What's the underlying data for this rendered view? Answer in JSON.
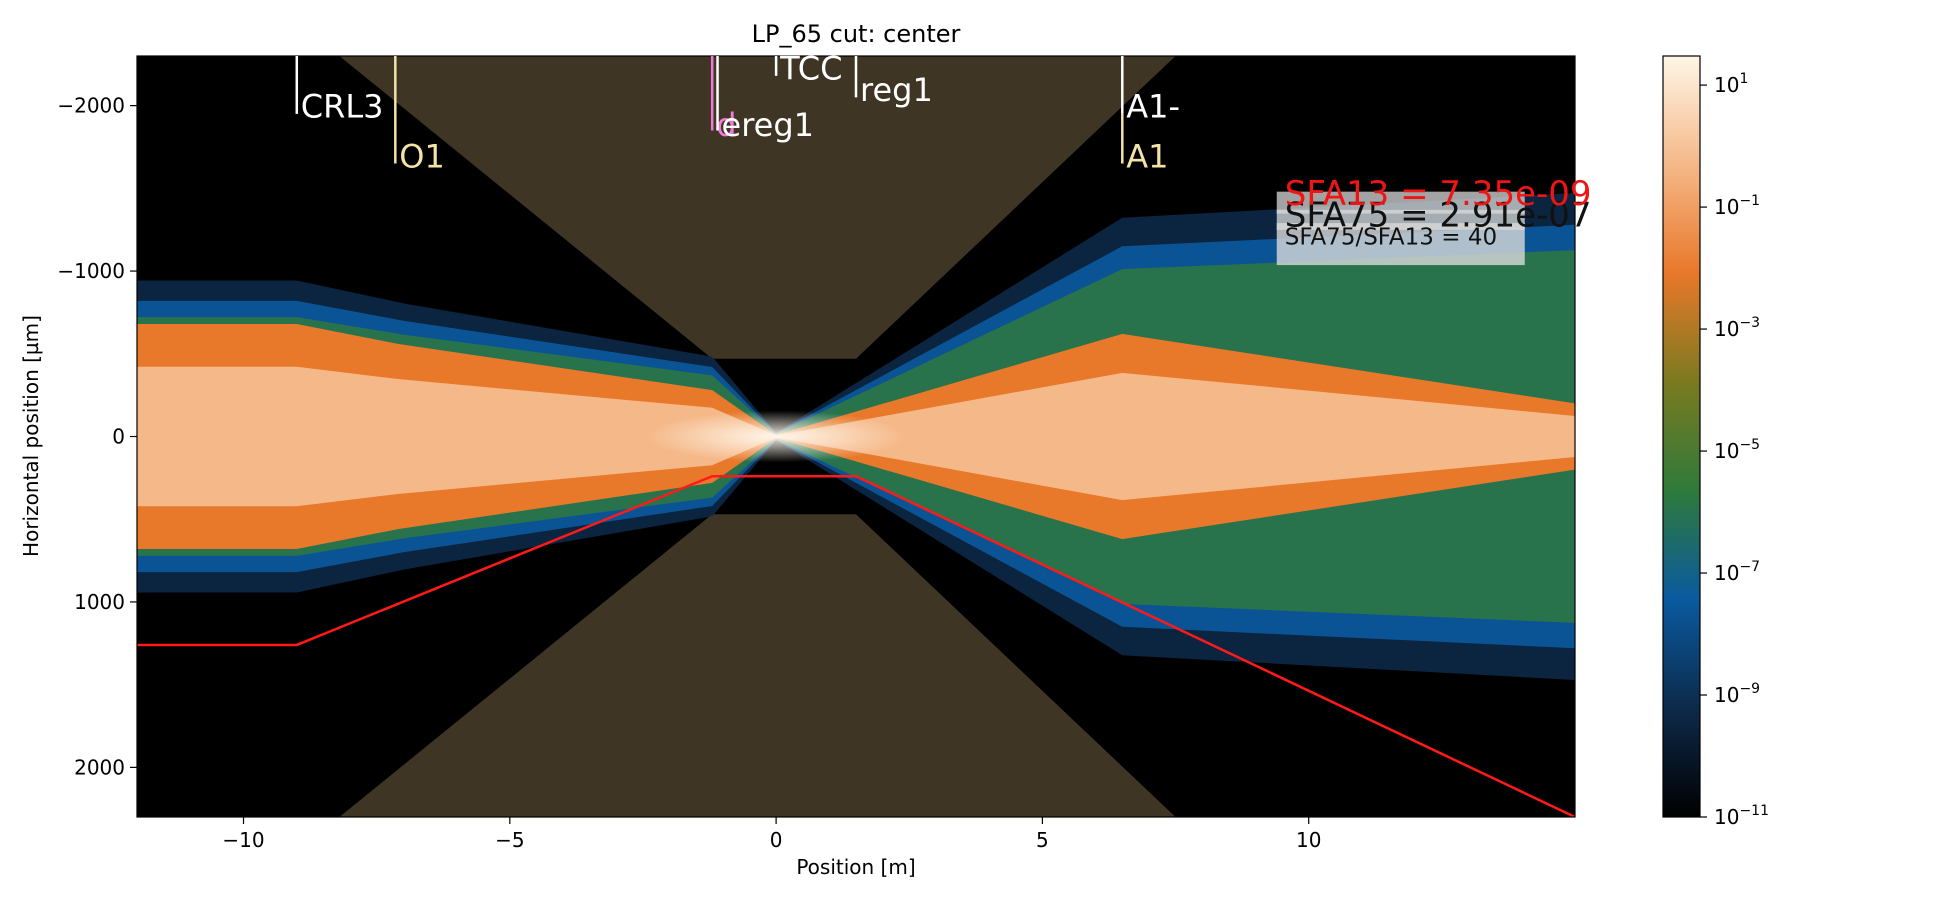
{
  "chart_data": {
    "type": "heatmap",
    "title": "LP_65 cut: center",
    "xlabel": "Position [m]",
    "ylabel": "Horizontal position [µm]",
    "xlim": [
      -12,
      15
    ],
    "ylim": [
      2300,
      -2300
    ],
    "x_ticks": [
      -10,
      -5,
      0,
      5,
      10
    ],
    "y_ticks": [
      -2000,
      -1000,
      0,
      1000,
      2000
    ],
    "grid": false,
    "colorbar": {
      "scale": "log",
      "range": [
        1e-11,
        30
      ],
      "colormap": [
        "#000000",
        "#0d2a4a",
        "#0a5aa0",
        "#2f7a3a",
        "#7a7a20",
        "#e8782a",
        "#f5b888",
        "#fff6e6"
      ],
      "ticks": [
        {
          "base": "10",
          "exp": "1",
          "value": 10
        },
        {
          "base": "10",
          "exp": "−1",
          "value": 0.1
        },
        {
          "base": "10",
          "exp": "−3",
          "value": 0.001
        },
        {
          "base": "10",
          "exp": "−5",
          "value": 1e-05
        },
        {
          "base": "10",
          "exp": "−7",
          "value": 1e-07
        },
        {
          "base": "10",
          "exp": "−9",
          "value": 1e-09
        },
        {
          "base": "10",
          "exp": "−11",
          "value": 1e-11
        }
      ]
    },
    "red_line": {
      "color": "#ff1a1a",
      "points": [
        [
          -12,
          1260
        ],
        [
          -9,
          1260
        ],
        [
          -1.2,
          240
        ],
        [
          1.5,
          240
        ],
        [
          15,
          2300
        ]
      ]
    },
    "aperture_shading": {
      "color": "#3e3524",
      "top": [
        [
          -8.2,
          -2300
        ],
        [
          -1.2,
          -470
        ],
        [
          1.5,
          -470
        ],
        [
          7.5,
          -2300
        ]
      ],
      "bottom": [
        [
          -8.2,
          2300
        ],
        [
          -1.2,
          470
        ],
        [
          1.5,
          470
        ],
        [
          7.5,
          2300
        ]
      ]
    },
    "beam_envelope": {
      "halo": [
        [
          -12,
          820
        ],
        [
          -9,
          820
        ],
        [
          -7,
          700
        ],
        [
          -1.2,
          420
        ],
        [
          0,
          20
        ],
        [
          6.5,
          1150
        ],
        [
          15,
          1280
        ]
      ],
      "core": [
        [
          -12,
          680
        ],
        [
          -9,
          680
        ],
        [
          -7.1,
          560
        ],
        [
          -1.2,
          280
        ],
        [
          0,
          10
        ],
        [
          6.5,
          620
        ],
        [
          15,
          200
        ]
      ]
    },
    "elements": [
      {
        "label": "CRL3",
        "x": -9,
        "line_top": -2300,
        "line_bottom": -1950,
        "color": "#ffffff",
        "label_y": -2000
      },
      {
        "label": "O1",
        "x": -7.15,
        "line_top": -2300,
        "line_bottom": -1650,
        "color": "#f3e3a8",
        "label_y": -1700
      },
      {
        "label": "d",
        "x": -1.2,
        "line_top": -2300,
        "line_bottom": -1850,
        "color": "#f07ad8",
        "label_y": -1890
      },
      {
        "label": "ereg1",
        "x": -1.1,
        "line_top": -2300,
        "line_bottom": -1850,
        "color": "#ffffff",
        "label_y": -1890
      },
      {
        "label": "TCC",
        "x": 0,
        "line_top": -2300,
        "line_bottom": -2180,
        "color": "#ffffff",
        "label_y": -2230
      },
      {
        "label": "reg1",
        "x": 1.5,
        "line_top": -2300,
        "line_bottom": -2050,
        "color": "#ffffff",
        "label_y": -2100
      },
      {
        "label": "A1-",
        "x": 6.5,
        "line_top": -2300,
        "line_bottom": -1950,
        "color": "#ffffff",
        "label_y": -2000
      },
      {
        "label": "A1",
        "x": 6.5,
        "line_top": -1950,
        "line_bottom": -1650,
        "color": "#f3e3a8",
        "label_y": -1700
      }
    ],
    "annotations": {
      "sfa13": "SFA13 = 7.35e-09",
      "sfa75": "SFA75 = 2.91e-07",
      "ratio": "SFA75/SFA13 = 40"
    }
  }
}
